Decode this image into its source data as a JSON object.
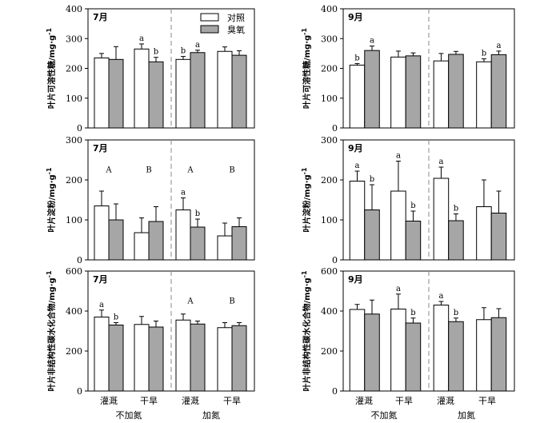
{
  "chart_data": [
    {
      "type": "bar",
      "month_label": "7月",
      "ylabel": "叶片可溶性糖/mg·g",
      "ylabel_sup": "-1",
      "ylim": [
        0,
        400
      ],
      "yticks": [
        "0",
        "100",
        "200",
        "300",
        "400"
      ],
      "categories": [
        "灌溉",
        "干旱",
        "灌溉",
        "干旱"
      ],
      "series": [
        {
          "name": "对照",
          "values": [
            235,
            265,
            230,
            257
          ],
          "errors": [
            15,
            17,
            10,
            15
          ]
        },
        {
          "name": "臭氧",
          "values": [
            230,
            222,
            253,
            244
          ],
          "errors": [
            43,
            15,
            8,
            15
          ]
        }
      ],
      "sig_letters": [
        [
          "",
          "",
          "a",
          "b",
          "b",
          "a",
          "",
          ""
        ]
      ],
      "sig_upper": [
        "",
        "",
        "",
        ""
      ]
    },
    {
      "type": "bar",
      "month_label": "9月",
      "ylabel": "叶片可溶性糖/mg·g",
      "ylabel_sup": "-1",
      "ylim": [
        0,
        400
      ],
      "yticks": [
        "0",
        "100",
        "200",
        "300",
        "400"
      ],
      "categories": [
        "灌溉",
        "干旱",
        "灌溉",
        "干旱"
      ],
      "series": [
        {
          "name": "对照",
          "values": [
            211,
            238,
            225,
            222
          ],
          "errors": [
            5,
            20,
            25,
            10
          ]
        },
        {
          "name": "臭氧",
          "values": [
            260,
            242,
            247,
            246
          ],
          "errors": [
            15,
            10,
            10,
            12
          ]
        }
      ],
      "sig_letters": [
        [
          "b",
          "a",
          "",
          "",
          "",
          "",
          "b",
          "a"
        ]
      ],
      "sig_upper": [
        "",
        "",
        "",
        ""
      ]
    },
    {
      "type": "bar",
      "month_label": "7月",
      "ylabel": "叶片淀粉/mg·g",
      "ylabel_sup": "-1",
      "ylim": [
        0,
        300
      ],
      "yticks": [
        "0",
        "100",
        "200",
        "300"
      ],
      "categories": [
        "灌溉",
        "干旱",
        "灌溉",
        "干旱"
      ],
      "series": [
        {
          "name": "对照",
          "values": [
            135,
            68,
            125,
            60
          ],
          "errors": [
            37,
            37,
            30,
            32
          ]
        },
        {
          "name": "臭氧",
          "values": [
            100,
            96,
            82,
            83
          ],
          "errors": [
            40,
            37,
            20,
            22
          ]
        }
      ],
      "sig_letters": [
        [
          "",
          "",
          "",
          "",
          "a",
          "b",
          "",
          ""
        ]
      ],
      "sig_upper": [
        "A",
        "B",
        "A",
        "B"
      ]
    },
    {
      "type": "bar",
      "month_label": "9月",
      "ylabel": "叶片淀粉/mg·g",
      "ylabel_sup": "-1",
      "ylim": [
        0,
        300
      ],
      "yticks": [
        "0",
        "100",
        "200",
        "300"
      ],
      "categories": [
        "灌溉",
        "干旱",
        "灌溉",
        "干旱"
      ],
      "series": [
        {
          "name": "对照",
          "values": [
            197,
            172,
            204,
            133
          ],
          "errors": [
            25,
            75,
            28,
            67
          ]
        },
        {
          "name": "臭氧",
          "values": [
            125,
            97,
            98,
            117
          ],
          "errors": [
            63,
            25,
            17,
            55
          ]
        }
      ],
      "sig_letters": [
        [
          "a",
          "b",
          "a",
          "b",
          "a",
          "b",
          "",
          ""
        ]
      ],
      "sig_upper": [
        "",
        "",
        "",
        ""
      ]
    },
    {
      "type": "bar",
      "month_label": "7月",
      "ylabel": "叶片非结构性碳水化合物/mg·g",
      "ylabel_sup": "-1",
      "ylim": [
        0,
        600
      ],
      "yticks": [
        "0",
        "200",
        "400",
        "600"
      ],
      "categories": [
        "灌溉",
        "干旱",
        "灌溉",
        "干旱"
      ],
      "series": [
        {
          "name": "对照",
          "values": [
            370,
            333,
            355,
            317
          ],
          "errors": [
            35,
            40,
            30,
            25
          ]
        },
        {
          "name": "臭氧",
          "values": [
            330,
            320,
            335,
            327
          ],
          "errors": [
            12,
            30,
            15,
            15
          ]
        }
      ],
      "sig_letters": [
        [
          "a",
          "b",
          "",
          "",
          "",
          "",
          "",
          ""
        ]
      ],
      "sig_upper": [
        "",
        "",
        "A",
        "B"
      ]
    },
    {
      "type": "bar",
      "month_label": "9月",
      "ylabel": "叶片非结构性碳水化合物/mg·g",
      "ylabel_sup": "-1",
      "ylim": [
        0,
        600
      ],
      "yticks": [
        "0",
        "200",
        "400",
        "600"
      ],
      "categories": [
        "灌溉",
        "干旱",
        "灌溉",
        "干旱"
      ],
      "series": [
        {
          "name": "对照",
          "values": [
            408,
            410,
            430,
            357
          ],
          "errors": [
            25,
            75,
            18,
            60
          ]
        },
        {
          "name": "臭氧",
          "values": [
            385,
            340,
            347,
            367
          ],
          "errors": [
            70,
            25,
            18,
            45
          ]
        }
      ],
      "sig_letters": [
        [
          "",
          "",
          "a",
          "b",
          "a",
          "b",
          "",
          ""
        ]
      ],
      "sig_upper": [
        "",
        "",
        "",
        ""
      ]
    }
  ],
  "legend": {
    "control_label": "对照",
    "ozone_label": "臭氧"
  },
  "x_groups": {
    "left": "不加氮",
    "right": "加氮"
  },
  "x_categories": [
    "灌溉",
    "干旱",
    "灌溉",
    "干旱"
  ],
  "colors": {
    "control_fill": "#ffffff",
    "ozone_fill": "#a6a6a6",
    "divider": "#888888",
    "axis": "#000000"
  }
}
